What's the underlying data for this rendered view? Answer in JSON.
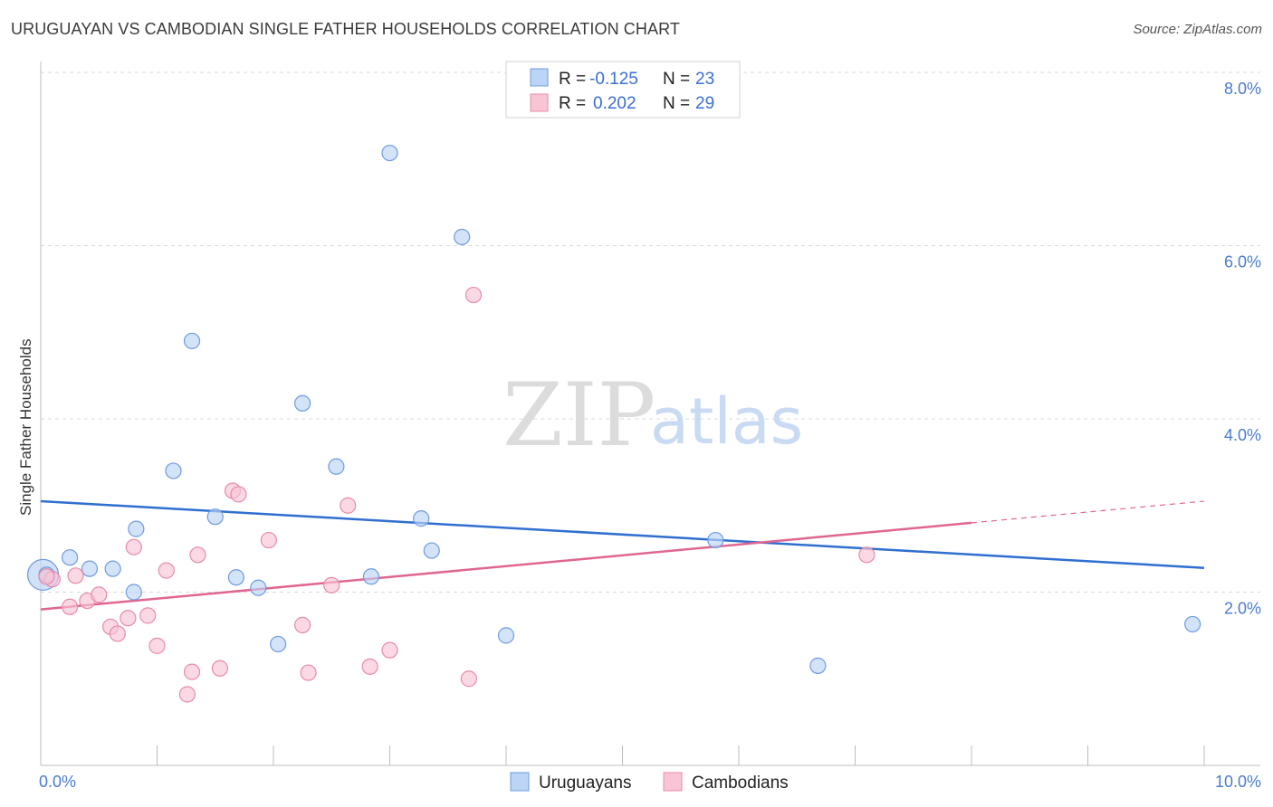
{
  "title": "URUGUAYAN VS CAMBODIAN SINGLE FATHER HOUSEHOLDS CORRELATION CHART",
  "source": "Source: ZipAtlas.com",
  "watermark": {
    "zip": "ZIP",
    "atlas": "atlas"
  },
  "colors": {
    "uruguayans_fill": "#bcd4f5",
    "uruguayans_stroke": "#6f9be0",
    "uruguayans_line": "#2f6fcf",
    "cambodians_fill": "#f8c5d5",
    "cambodians_stroke": "#e88aa8",
    "cambodians_line": "#e06690",
    "grid": "#d8d8d8",
    "tick_text": "#4a7bd0"
  },
  "legend": {
    "rows": [
      {
        "r_label": "R =",
        "r_value": "-0.125",
        "n_label": "N =",
        "n_value": "23"
      },
      {
        "r_label": "R =",
        "r_value": "0.202",
        "n_label": "N =",
        "n_value": "29"
      }
    ]
  },
  "chart_data": {
    "type": "scatter",
    "ylabel": "Single Father Households",
    "xlim": [
      0,
      10
    ],
    "ylim": [
      0,
      8
    ],
    "x_tick_labels": [
      {
        "value": 0,
        "label": "0.0%"
      },
      {
        "value": 10,
        "label": "10.0%"
      }
    ],
    "y_tick_labels": [
      {
        "value": 2,
        "label": "2.0%"
      },
      {
        "value": 4,
        "label": "4.0%"
      },
      {
        "value": 6,
        "label": "6.0%"
      },
      {
        "value": 8,
        "label": "8.0%"
      }
    ],
    "legend_position": "bottom-center",
    "series": [
      {
        "name": "Uruguayans",
        "points": [
          [
            0.05,
            2.2
          ],
          [
            0.25,
            2.4
          ],
          [
            0.42,
            2.27
          ],
          [
            0.62,
            2.27
          ],
          [
            0.82,
            2.73
          ],
          [
            0.8,
            2.0
          ],
          [
            1.14,
            3.4
          ],
          [
            1.3,
            4.9
          ],
          [
            1.5,
            2.87
          ],
          [
            1.68,
            2.17
          ],
          [
            1.87,
            2.05
          ],
          [
            2.04,
            1.4
          ],
          [
            2.25,
            4.18
          ],
          [
            2.54,
            3.45
          ],
          [
            2.84,
            2.18
          ],
          [
            3.0,
            7.07
          ],
          [
            3.27,
            2.85
          ],
          [
            3.36,
            2.48
          ],
          [
            3.62,
            6.1
          ],
          [
            4.0,
            1.5
          ],
          [
            5.8,
            2.6
          ],
          [
            6.68,
            1.15
          ],
          [
            9.9,
            1.63
          ]
        ],
        "trend": {
          "x": [
            0,
            10
          ],
          "y": [
            3.05,
            2.28
          ]
        }
      },
      {
        "name": "Cambodians",
        "points": [
          [
            0.1,
            2.15
          ],
          [
            0.25,
            1.83
          ],
          [
            0.3,
            2.19
          ],
          [
            0.4,
            1.9
          ],
          [
            0.5,
            1.97
          ],
          [
            0.6,
            1.6
          ],
          [
            0.66,
            1.52
          ],
          [
            0.75,
            1.7
          ],
          [
            0.8,
            2.52
          ],
          [
            0.92,
            1.73
          ],
          [
            1.0,
            1.38
          ],
          [
            1.08,
            2.25
          ],
          [
            1.26,
            0.82
          ],
          [
            1.3,
            1.08
          ],
          [
            1.35,
            2.43
          ],
          [
            1.54,
            1.12
          ],
          [
            1.65,
            3.17
          ],
          [
            1.7,
            3.13
          ],
          [
            1.96,
            2.6
          ],
          [
            2.25,
            1.62
          ],
          [
            2.3,
            1.07
          ],
          [
            2.5,
            2.08
          ],
          [
            2.64,
            3.0
          ],
          [
            2.83,
            1.14
          ],
          [
            3.0,
            1.33
          ],
          [
            3.68,
            1.0
          ],
          [
            3.72,
            5.43
          ],
          [
            7.1,
            2.43
          ],
          [
            0.05,
            2.18
          ]
        ],
        "trend": {
          "x": [
            0,
            8
          ],
          "y": [
            1.8,
            2.8
          ]
        },
        "trend_extension": {
          "x": [
            8,
            10
          ],
          "y": [
            2.8,
            3.05
          ]
        }
      }
    ]
  }
}
